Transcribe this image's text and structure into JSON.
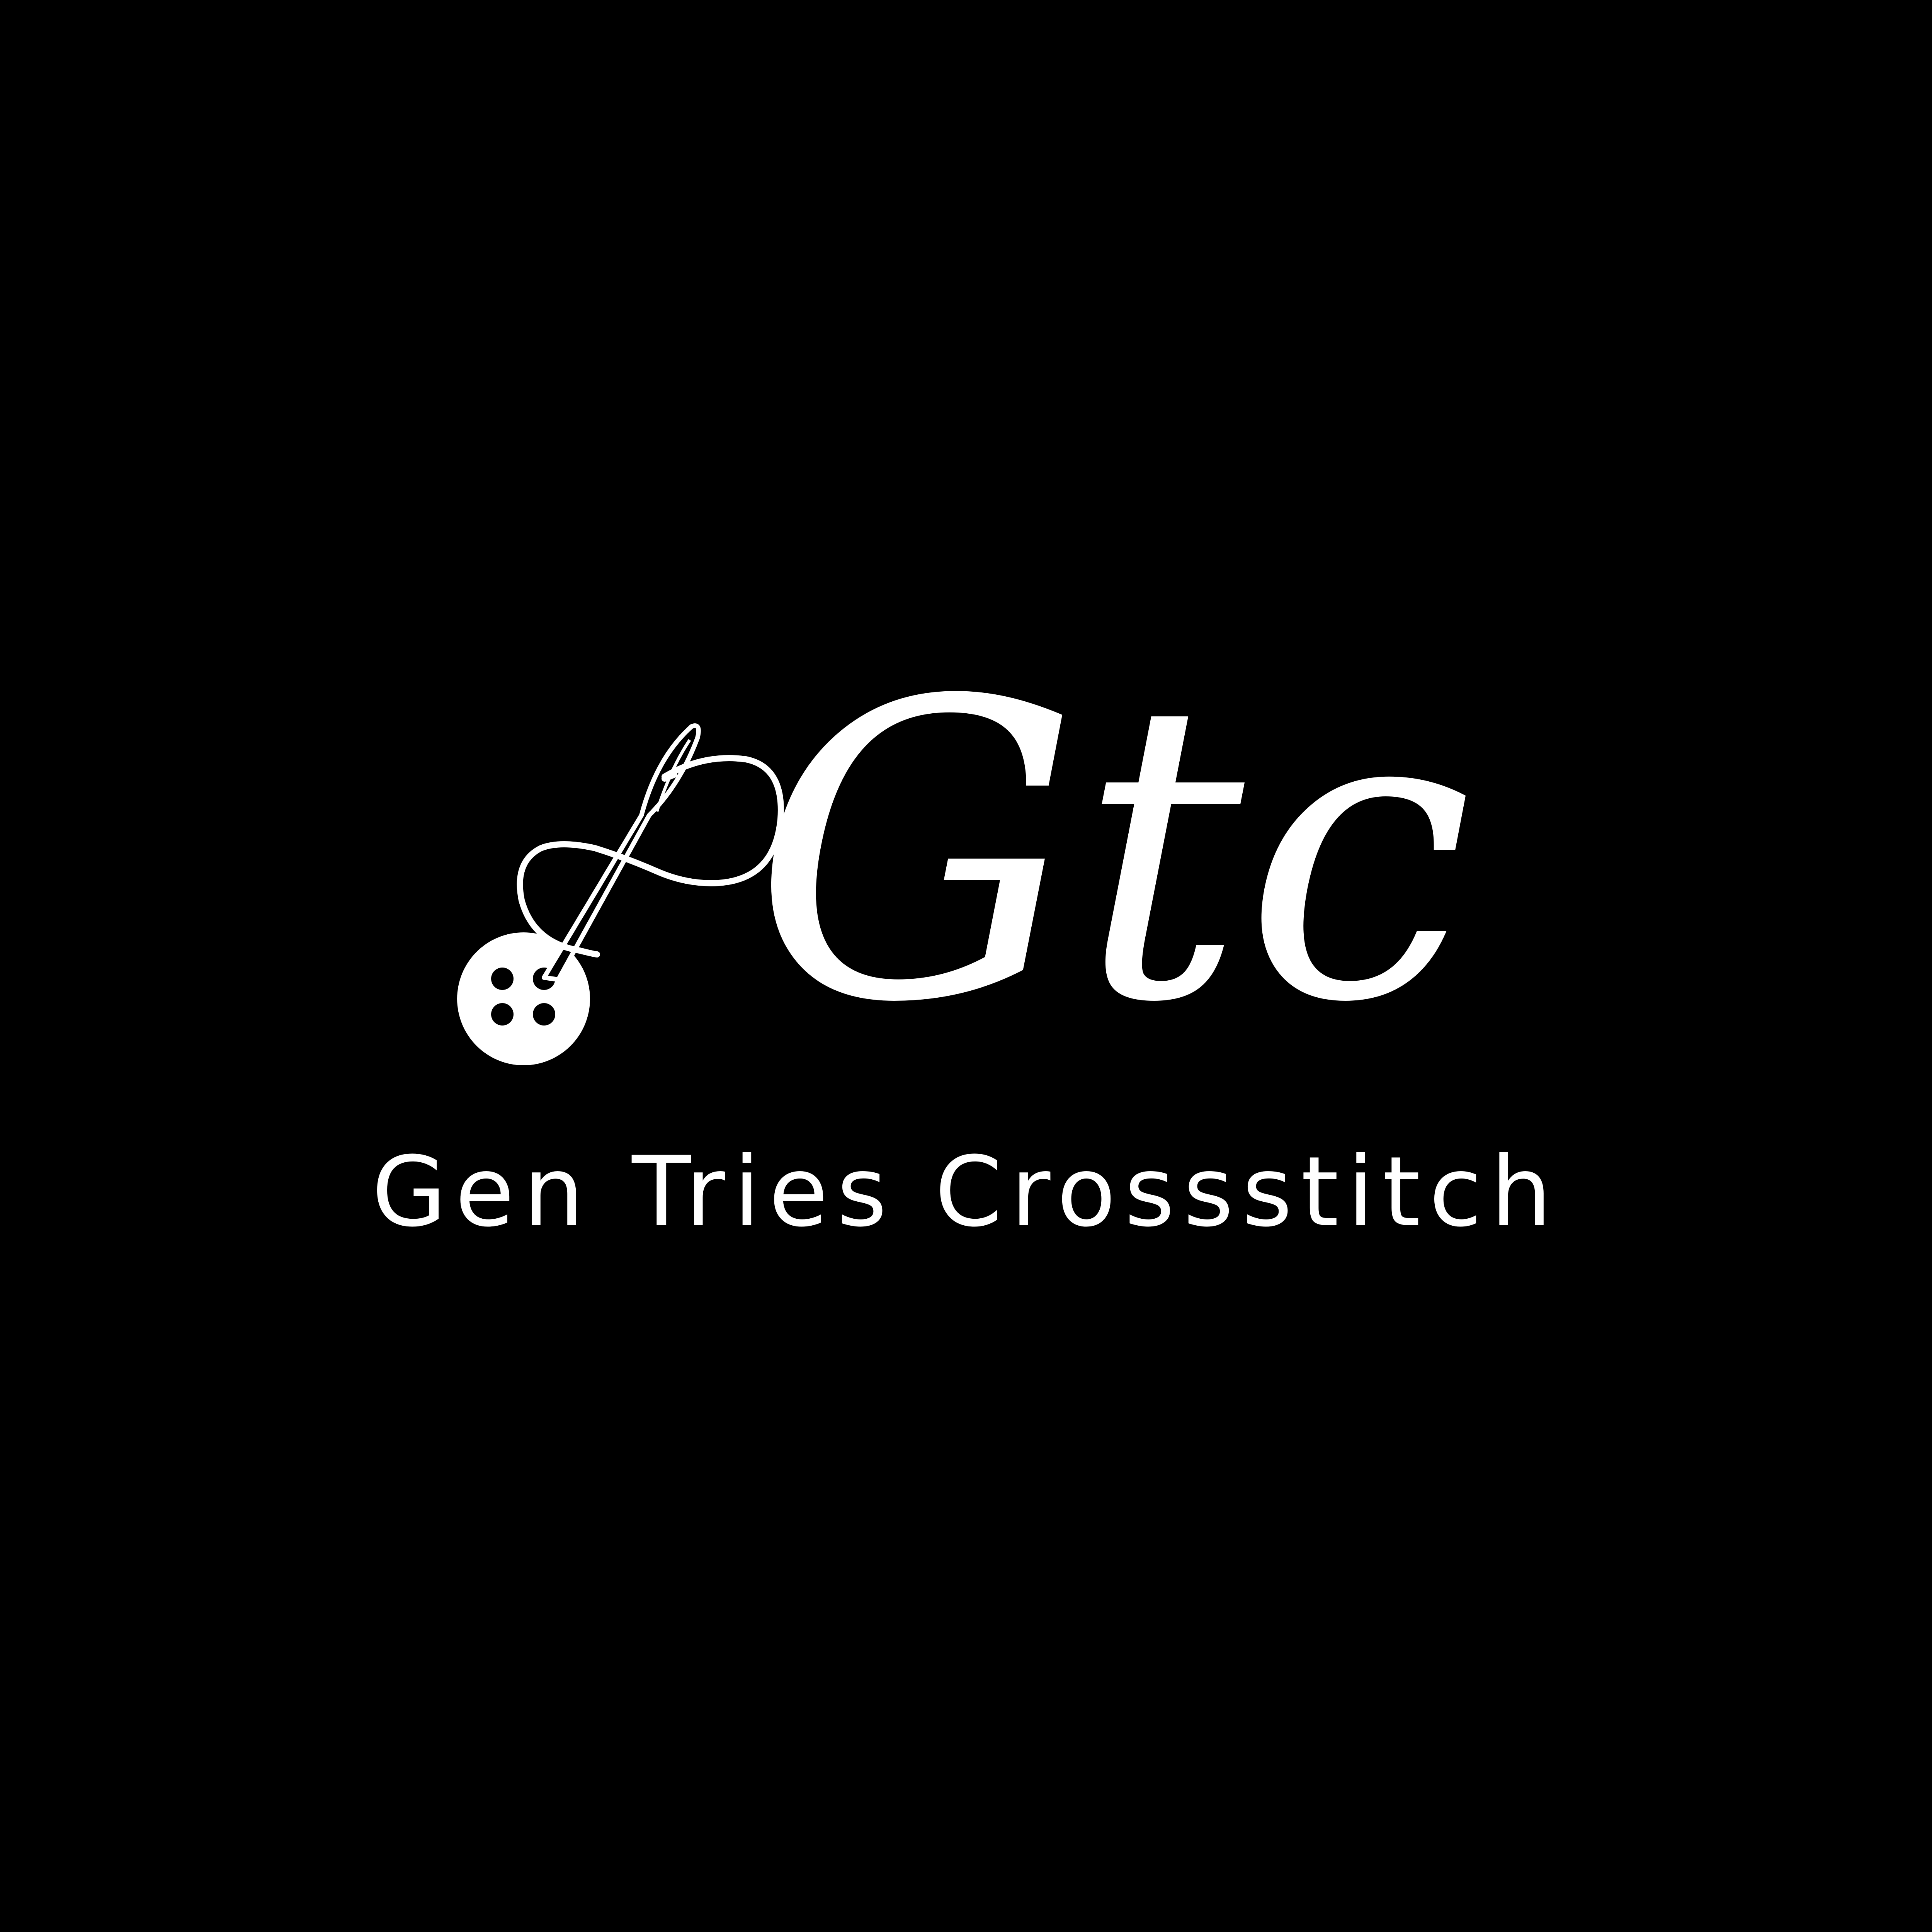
{
  "logo": {
    "monogram": "Gtc",
    "brand_name": "Gen Tries Crossstitch",
    "icons": [
      "needle-and-thread-icon",
      "button-icon"
    ]
  },
  "colors": {
    "background": "#000000",
    "foreground": "#ffffff"
  }
}
